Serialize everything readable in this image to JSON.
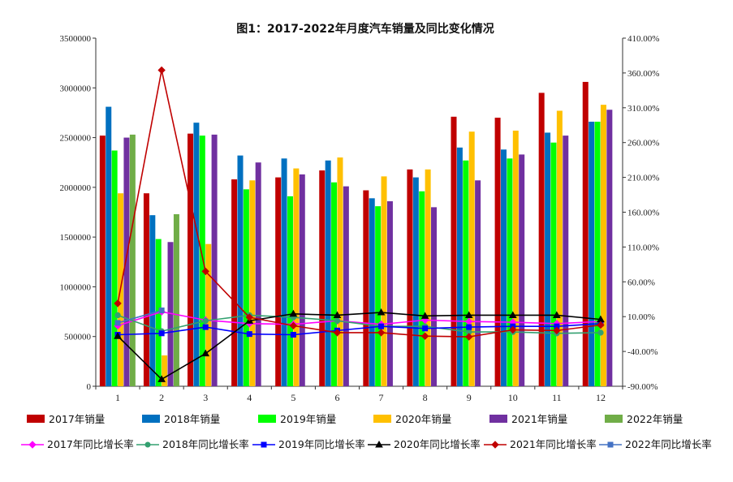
{
  "chart_data": {
    "type": "bar",
    "title": "图1：2017-2022年月度汽车销量及同比变化情况",
    "categories": [
      "1",
      "2",
      "3",
      "4",
      "5",
      "6",
      "7",
      "8",
      "9",
      "10",
      "11",
      "12"
    ],
    "y_left": {
      "ylim": [
        0,
        3500000
      ],
      "ticks": [
        "0",
        "500000",
        "1000000",
        "1500000",
        "2000000",
        "2500000",
        "3000000",
        "3500000"
      ]
    },
    "y_right": {
      "ylim": [
        -90,
        410
      ],
      "ticks": [
        "-90.00%",
        "-40.00%",
        "10.00%",
        "60.00%",
        "110.00%",
        "160.00%",
        "210.00%",
        "260.00%",
        "310.00%",
        "360.00%",
        "410.00%"
      ]
    },
    "bar_series": [
      {
        "name": "2017年销量",
        "color": "#c00000",
        "values": [
          2520000,
          1940000,
          2540000,
          2080000,
          2100000,
          2170000,
          1970000,
          2180000,
          2710000,
          2700000,
          2950000,
          3060000
        ]
      },
      {
        "name": "2018年销量",
        "color": "#0070c0",
        "values": [
          2810000,
          1720000,
          2650000,
          2320000,
          2290000,
          2270000,
          1890000,
          2100000,
          2400000,
          2380000,
          2550000,
          2660000
        ]
      },
      {
        "name": "2019年销量",
        "color": "#00ff00",
        "values": [
          2370000,
          1480000,
          2520000,
          1980000,
          1910000,
          2050000,
          1810000,
          1960000,
          2270000,
          2290000,
          2450000,
          2660000
        ]
      },
      {
        "name": "2020年销量",
        "color": "#ffc000",
        "values": [
          1940000,
          310000,
          1430000,
          2070000,
          2190000,
          2300000,
          2110000,
          2180000,
          2560000,
          2570000,
          2770000,
          2830000
        ]
      },
      {
        "name": "2021年销量",
        "color": "#7030a0",
        "values": [
          2500000,
          1450000,
          2530000,
          2250000,
          2130000,
          2010000,
          1860000,
          1800000,
          2070000,
          2330000,
          2520000,
          2780000
        ]
      },
      {
        "name": "2022年销量",
        "color": "#70ad47",
        "values": [
          2530000,
          1730000,
          null,
          null,
          null,
          null,
          null,
          null,
          null,
          null,
          null,
          null
        ]
      }
    ],
    "line_series": [
      {
        "name": "2017年同比增长率",
        "color": "#ff00ff",
        "marker": "diamond",
        "values": [
          -3,
          17,
          5,
          0,
          -1,
          4,
          -1,
          5,
          3,
          2,
          0,
          3
        ]
      },
      {
        "name": "2018年同比增长率",
        "color": "#33a070",
        "marker": "circle",
        "values": [
          12,
          -11,
          4,
          12,
          9,
          4,
          -4,
          -4,
          -12,
          -12,
          -14,
          -13
        ]
      },
      {
        "name": "2019年同比增长率",
        "color": "#0000ff",
        "marker": "square",
        "values": [
          -16,
          -14,
          -5,
          -15,
          -16,
          -10,
          -4,
          -7,
          -5,
          -4,
          -4,
          0
        ]
      },
      {
        "name": "2020年同比增长率",
        "color": "#000000",
        "marker": "triangle",
        "values": [
          -18,
          -80,
          -43,
          4,
          14,
          12,
          16,
          11,
          12,
          12,
          12,
          6
        ]
      },
      {
        "name": "2021年同比增长率",
        "color": "#c00000",
        "marker": "diamond",
        "values": [
          29,
          364,
          75,
          9,
          -3,
          -13,
          -13,
          -18,
          -19,
          -9,
          -10,
          -2
        ]
      },
      {
        "name": "2022年同比增长率",
        "color": "#4472c4",
        "marker": "square",
        "values": [
          1,
          19,
          null,
          null,
          null,
          null,
          null,
          null,
          null,
          null,
          null,
          null
        ]
      }
    ],
    "legend_position": "bottom",
    "grid": false
  }
}
